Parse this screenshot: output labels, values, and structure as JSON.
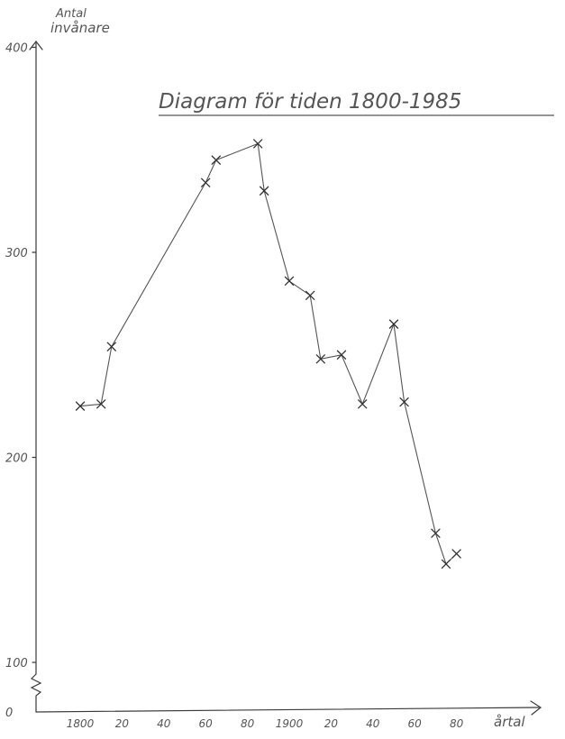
{
  "chart_data": {
    "type": "line",
    "title": "Diagram för tiden 1800-1985",
    "ylabel_line1": "Antal",
    "ylabel_line2": "invånare",
    "xlabel": "årtal",
    "x_tick_labels": [
      "1800",
      "20",
      "40",
      "60",
      "80",
      "1900",
      "20",
      "40",
      "60",
      "80"
    ],
    "x_tick_values": [
      1800,
      1820,
      1840,
      1860,
      1880,
      1900,
      1920,
      1940,
      1960,
      1980
    ],
    "y_tick_labels": [
      "400",
      "300",
      "200",
      "100",
      "0"
    ],
    "y_tick_values": [
      400,
      300,
      200,
      100,
      0
    ],
    "y_axis_break": "between 0 and 100",
    "grid": false,
    "series": [
      {
        "x": [
          1800,
          1810,
          1815,
          1860,
          1865,
          1885,
          1888,
          1900,
          1910,
          1915,
          1925,
          1935,
          1950,
          1955,
          1970,
          1975,
          1980
        ],
        "y": [
          225,
          226,
          254,
          334,
          345,
          353,
          330,
          286,
          279,
          248,
          250,
          226,
          265,
          227,
          163,
          148,
          153
        ]
      }
    ]
  }
}
